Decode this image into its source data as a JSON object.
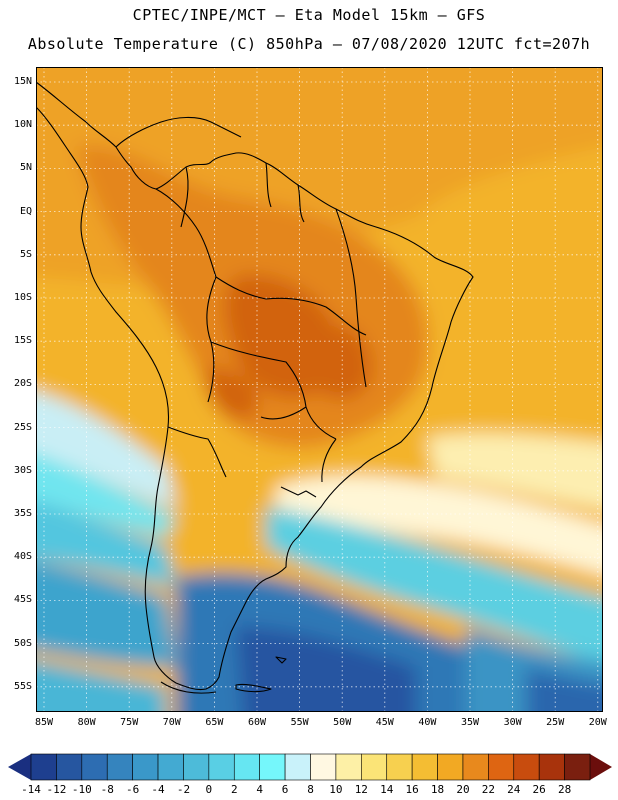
{
  "header": {
    "line1": "CPTEC/INPE/MCT –  Eta Model 15km – GFS",
    "line2": "Absolute Temperature (C) 850hPa – 07/08/2020 12UTC fct=207h"
  },
  "map": {
    "lat_labels": [
      "15N",
      "10N",
      "5N",
      "EQ",
      "5S",
      "10S",
      "15S",
      "20S",
      "25S",
      "30S",
      "35S",
      "40S",
      "45S",
      "50S",
      "55S"
    ],
    "lon_labels": [
      "85W",
      "80W",
      "75W",
      "70W",
      "65W",
      "60W",
      "55W",
      "50W",
      "45W",
      "40W",
      "35W",
      "30W",
      "25W",
      "20W"
    ],
    "colors": {
      "frame": "#000000",
      "grid": "#ffffff",
      "coast": "#000000"
    }
  },
  "colorbar": {
    "labels": [
      "-14",
      "-12",
      "-10",
      "-8",
      "-6",
      "-4",
      "-2",
      "0",
      "2",
      "4",
      "6",
      "8",
      "10",
      "12",
      "14",
      "16",
      "18",
      "20",
      "22",
      "24",
      "26",
      "28"
    ],
    "colors": [
      "#1e3f8f",
      "#2656a0",
      "#2d6db2",
      "#3584be",
      "#3a98c9",
      "#43aad2",
      "#4dbbd9",
      "#59cfe4",
      "#66e6f2",
      "#75f7fb",
      "#c9f2fa",
      "#fff8e2",
      "#fdf0a6",
      "#fbe477",
      "#f7d04f",
      "#f4bd33",
      "#f2a923",
      "#e8891d",
      "#de6512",
      "#c84c0e",
      "#a8330c",
      "#7a1f0f"
    ],
    "left_arrow_color": "#1a2f80",
    "right_arrow_color": "#6b0e0c"
  }
}
